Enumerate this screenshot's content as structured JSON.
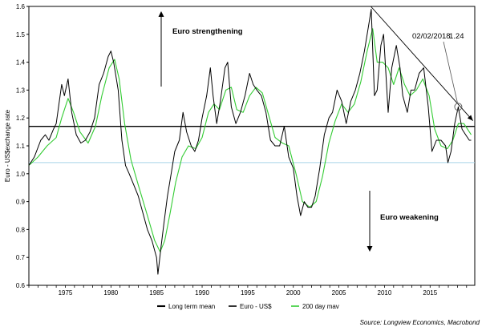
{
  "chart_data": {
    "type": "line",
    "ylabel": "Euro - US$exchange rate",
    "ylim": [
      0.6,
      1.6
    ],
    "y_ticks": [
      "0.6",
      "0.7",
      "0.8",
      "0.9",
      "1.0",
      "1.1",
      "1.2",
      "1.3",
      "1.4",
      "1.5",
      "1.6"
    ],
    "xlim": [
      1971,
      2019.9
    ],
    "x_ticks": [
      "1975",
      "1980",
      "1985",
      "1990",
      "1995",
      "2000",
      "2005",
      "2010",
      "2015"
    ],
    "grid": false,
    "legend_position": "bottom",
    "long_term_mean": 1.17,
    "reference_line": 1.04,
    "trendline": {
      "from": {
        "x": 2008.5,
        "y": 1.6
      },
      "to": {
        "x": 2019.7,
        "y": 1.19
      }
    },
    "highlight": {
      "x": 2018.09,
      "y": 1.24
    },
    "series": [
      {
        "name": "Euro  - US$",
        "color": "#000000",
        "points": [
          [
            1971.0,
            1.03
          ],
          [
            1971.6,
            1.06
          ],
          [
            1972.3,
            1.12
          ],
          [
            1972.8,
            1.14
          ],
          [
            1973.2,
            1.12
          ],
          [
            1973.7,
            1.16
          ],
          [
            1974.0,
            1.18
          ],
          [
            1974.6,
            1.32
          ],
          [
            1974.9,
            1.28
          ],
          [
            1975.3,
            1.34
          ],
          [
            1975.7,
            1.22
          ],
          [
            1976.2,
            1.14
          ],
          [
            1976.7,
            1.11
          ],
          [
            1977.2,
            1.12
          ],
          [
            1977.7,
            1.15
          ],
          [
            1978.2,
            1.2
          ],
          [
            1978.7,
            1.32
          ],
          [
            1979.2,
            1.36
          ],
          [
            1979.7,
            1.42
          ],
          [
            1980.0,
            1.44
          ],
          [
            1980.3,
            1.4
          ],
          [
            1980.8,
            1.3
          ],
          [
            1981.2,
            1.12
          ],
          [
            1981.6,
            1.03
          ],
          [
            1982.0,
            1.0
          ],
          [
            1982.5,
            0.96
          ],
          [
            1983.0,
            0.92
          ],
          [
            1983.5,
            0.86
          ],
          [
            1984.0,
            0.8
          ],
          [
            1984.5,
            0.76
          ],
          [
            1985.0,
            0.7
          ],
          [
            1985.15,
            0.64
          ],
          [
            1985.5,
            0.74
          ],
          [
            1985.8,
            0.82
          ],
          [
            1986.2,
            0.92
          ],
          [
            1986.6,
            1.0
          ],
          [
            1987.0,
            1.08
          ],
          [
            1987.5,
            1.12
          ],
          [
            1987.9,
            1.22
          ],
          [
            1988.3,
            1.15
          ],
          [
            1988.8,
            1.1
          ],
          [
            1989.2,
            1.08
          ],
          [
            1989.6,
            1.12
          ],
          [
            1990.0,
            1.2
          ],
          [
            1990.5,
            1.28
          ],
          [
            1990.9,
            1.38
          ],
          [
            1991.2,
            1.28
          ],
          [
            1991.6,
            1.18
          ],
          [
            1992.0,
            1.26
          ],
          [
            1992.5,
            1.38
          ],
          [
            1992.8,
            1.4
          ],
          [
            1993.2,
            1.24
          ],
          [
            1993.7,
            1.18
          ],
          [
            1994.2,
            1.22
          ],
          [
            1994.7,
            1.28
          ],
          [
            1995.2,
            1.36
          ],
          [
            1995.6,
            1.32
          ],
          [
            1996.0,
            1.3
          ],
          [
            1996.5,
            1.28
          ],
          [
            1997.0,
            1.22
          ],
          [
            1997.5,
            1.12
          ],
          [
            1998.0,
            1.1
          ],
          [
            1998.5,
            1.1
          ],
          [
            1999.0,
            1.17
          ],
          [
            1999.5,
            1.06
          ],
          [
            2000.0,
            1.02
          ],
          [
            2000.4,
            0.92
          ],
          [
            2000.8,
            0.85
          ],
          [
            2001.2,
            0.9
          ],
          [
            2001.6,
            0.88
          ],
          [
            2002.0,
            0.88
          ],
          [
            2002.4,
            0.92
          ],
          [
            2002.9,
            1.02
          ],
          [
            2003.4,
            1.14
          ],
          [
            2003.9,
            1.2
          ],
          [
            2004.3,
            1.22
          ],
          [
            2004.8,
            1.3
          ],
          [
            2005.3,
            1.26
          ],
          [
            2005.8,
            1.18
          ],
          [
            2006.3,
            1.26
          ],
          [
            2006.8,
            1.3
          ],
          [
            2007.3,
            1.36
          ],
          [
            2007.8,
            1.44
          ],
          [
            2008.3,
            1.54
          ],
          [
            2008.55,
            1.59
          ],
          [
            2008.9,
            1.28
          ],
          [
            2009.2,
            1.3
          ],
          [
            2009.6,
            1.46
          ],
          [
            2009.9,
            1.5
          ],
          [
            2010.4,
            1.22
          ],
          [
            2010.8,
            1.38
          ],
          [
            2011.3,
            1.46
          ],
          [
            2011.7,
            1.38
          ],
          [
            2012.0,
            1.28
          ],
          [
            2012.5,
            1.22
          ],
          [
            2012.9,
            1.3
          ],
          [
            2013.3,
            1.3
          ],
          [
            2013.8,
            1.36
          ],
          [
            2014.3,
            1.38
          ],
          [
            2014.8,
            1.24
          ],
          [
            2015.2,
            1.08
          ],
          [
            2015.7,
            1.12
          ],
          [
            2016.2,
            1.12
          ],
          [
            2016.7,
            1.1
          ],
          [
            2016.95,
            1.04
          ],
          [
            2017.3,
            1.08
          ],
          [
            2017.7,
            1.18
          ],
          [
            2018.09,
            1.24
          ],
          [
            2018.5,
            1.16
          ],
          [
            2018.9,
            1.14
          ],
          [
            2019.3,
            1.12
          ],
          [
            2019.5,
            1.12
          ]
        ]
      },
      {
        "name": "200 day mav",
        "color": "#33cc33",
        "points": [
          [
            1971.0,
            1.03
          ],
          [
            1972.0,
            1.06
          ],
          [
            1973.0,
            1.1
          ],
          [
            1974.0,
            1.13
          ],
          [
            1974.6,
            1.2
          ],
          [
            1975.3,
            1.27
          ],
          [
            1975.9,
            1.22
          ],
          [
            1976.6,
            1.15
          ],
          [
            1977.5,
            1.11
          ],
          [
            1978.3,
            1.17
          ],
          [
            1979.0,
            1.28
          ],
          [
            1979.8,
            1.38
          ],
          [
            1980.4,
            1.41
          ],
          [
            1980.9,
            1.34
          ],
          [
            1981.5,
            1.18
          ],
          [
            1982.2,
            1.05
          ],
          [
            1983.0,
            0.96
          ],
          [
            1984.0,
            0.85
          ],
          [
            1984.8,
            0.76
          ],
          [
            1985.4,
            0.72
          ],
          [
            1985.9,
            0.76
          ],
          [
            1986.5,
            0.86
          ],
          [
            1987.1,
            0.97
          ],
          [
            1987.8,
            1.06
          ],
          [
            1988.5,
            1.1
          ],
          [
            1989.3,
            1.09
          ],
          [
            1990.0,
            1.13
          ],
          [
            1990.7,
            1.22
          ],
          [
            1991.3,
            1.25
          ],
          [
            1991.9,
            1.23
          ],
          [
            1992.6,
            1.3
          ],
          [
            1993.2,
            1.31
          ],
          [
            1993.8,
            1.23
          ],
          [
            1994.5,
            1.22
          ],
          [
            1995.2,
            1.28
          ],
          [
            1995.9,
            1.31
          ],
          [
            1996.6,
            1.29
          ],
          [
            1997.3,
            1.21
          ],
          [
            1998.0,
            1.13
          ],
          [
            1998.8,
            1.11
          ],
          [
            1999.5,
            1.1
          ],
          [
            2000.3,
            1.0
          ],
          [
            2001.0,
            0.9
          ],
          [
            2001.8,
            0.88
          ],
          [
            2002.5,
            0.9
          ],
          [
            2003.2,
            0.99
          ],
          [
            2003.9,
            1.11
          ],
          [
            2004.6,
            1.19
          ],
          [
            2005.3,
            1.25
          ],
          [
            2006.0,
            1.22
          ],
          [
            2006.7,
            1.25
          ],
          [
            2007.4,
            1.33
          ],
          [
            2008.1,
            1.44
          ],
          [
            2008.7,
            1.52
          ],
          [
            2009.2,
            1.4
          ],
          [
            2009.8,
            1.4
          ],
          [
            2010.4,
            1.38
          ],
          [
            2011.0,
            1.32
          ],
          [
            2011.6,
            1.38
          ],
          [
            2012.2,
            1.32
          ],
          [
            2012.8,
            1.28
          ],
          [
            2013.5,
            1.3
          ],
          [
            2014.2,
            1.34
          ],
          [
            2014.9,
            1.28
          ],
          [
            2015.5,
            1.16
          ],
          [
            2016.2,
            1.1
          ],
          [
            2016.9,
            1.09
          ],
          [
            2017.5,
            1.12
          ],
          [
            2018.1,
            1.18
          ],
          [
            2018.7,
            1.18
          ],
          [
            2019.3,
            1.15
          ],
          [
            2019.5,
            1.14
          ]
        ]
      }
    ]
  },
  "annotations": {
    "euro_strengthening": "Euro strengthening",
    "euro_weakening": "Euro weakening",
    "date_label": "02/02/2018",
    "value_label": "1.24"
  },
  "legend": [
    {
      "label": "Long term mean",
      "color": "#000000",
      "weight": 1.5
    },
    {
      "label": "Euro  - US$",
      "color": "#000000",
      "weight": 1
    },
    {
      "label": "200 day mav",
      "color": "#33cc33",
      "weight": 1
    }
  ],
  "source": "Source: Longview Economics, Macrobond",
  "colors": {
    "reference_line": "#a8d4e6",
    "mean_line": "#000000"
  }
}
